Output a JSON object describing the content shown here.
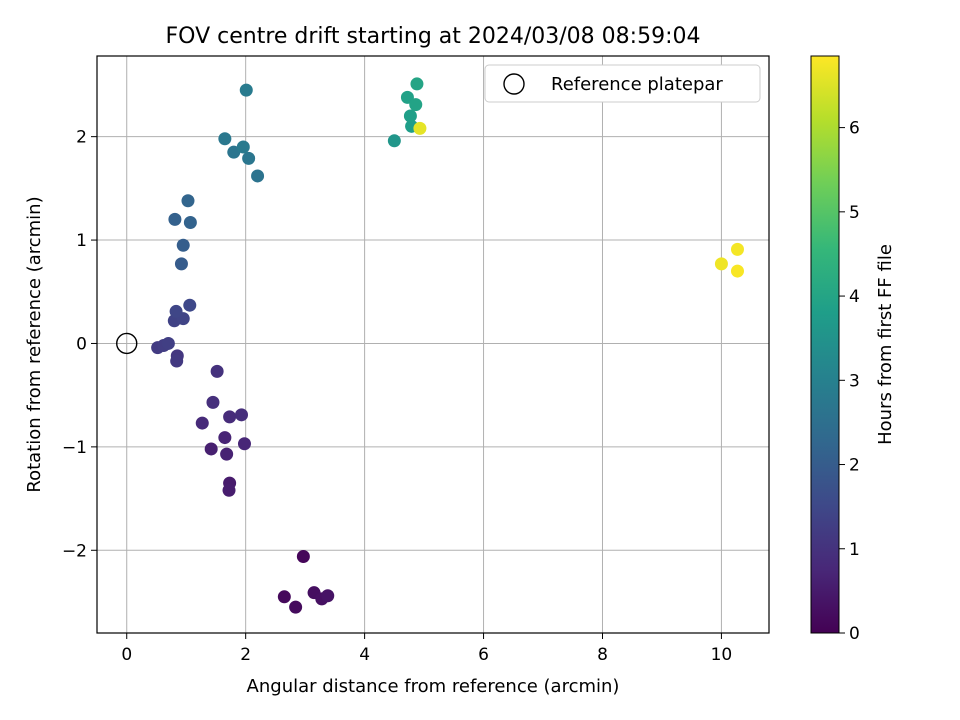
{
  "chart_data": {
    "type": "scatter",
    "title": "FOV centre drift starting at 2024/03/08 08:59:04",
    "xlabel": "Angular distance from reference (arcmin)",
    "ylabel": "Rotation from reference (arcmin)",
    "xlim": [
      -0.5,
      10.8
    ],
    "ylim": [
      -2.8,
      2.78
    ],
    "xticks": [
      0,
      2,
      4,
      6,
      8,
      10
    ],
    "yticks": [
      -2,
      -1,
      0,
      1,
      2
    ],
    "xtick_labels": [
      "0",
      "2",
      "4",
      "6",
      "8",
      "10"
    ],
    "ytick_labels": [
      "−2",
      "−1",
      "0",
      "1",
      "2"
    ],
    "grid": true,
    "legend": {
      "position": "top-right",
      "entries": [
        {
          "label": "Reference platepar",
          "marker": "open-circle"
        }
      ]
    },
    "reference_point": {
      "x": 0,
      "y": 0
    },
    "colorbar": {
      "label": "Hours from first FF file",
      "range": [
        0,
        6.85
      ],
      "ticks": [
        0,
        1,
        2,
        3,
        4,
        5,
        6
      ],
      "tick_labels": [
        "0",
        "1",
        "2",
        "3",
        "4",
        "5",
        "6"
      ],
      "colormap": "viridis",
      "stops": [
        "#440154",
        "#482878",
        "#3e4989",
        "#31688e",
        "#26828e",
        "#1f9e89",
        "#35b779",
        "#6ece58",
        "#b5de2b",
        "#fde725"
      ]
    },
    "points": [
      {
        "x": 2.97,
        "y": -2.06,
        "c": 0.1
      },
      {
        "x": 2.65,
        "y": -2.45,
        "c": 0.15
      },
      {
        "x": 2.84,
        "y": -2.55,
        "c": 0.2
      },
      {
        "x": 3.15,
        "y": -2.41,
        "c": 0.25
      },
      {
        "x": 3.28,
        "y": -2.47,
        "c": 0.3
      },
      {
        "x": 3.38,
        "y": -2.44,
        "c": 0.35
      },
      {
        "x": 1.73,
        "y": -1.35,
        "c": 0.5
      },
      {
        "x": 1.72,
        "y": -1.42,
        "c": 0.55
      },
      {
        "x": 1.42,
        "y": -1.02,
        "c": 0.6
      },
      {
        "x": 1.68,
        "y": -1.07,
        "c": 0.65
      },
      {
        "x": 1.65,
        "y": -0.91,
        "c": 0.7
      },
      {
        "x": 1.98,
        "y": -0.97,
        "c": 0.75
      },
      {
        "x": 1.27,
        "y": -0.77,
        "c": 0.8
      },
      {
        "x": 1.73,
        "y": -0.71,
        "c": 0.85
      },
      {
        "x": 1.93,
        "y": -0.69,
        "c": 0.9
      },
      {
        "x": 1.45,
        "y": -0.57,
        "c": 0.95
      },
      {
        "x": 1.52,
        "y": -0.27,
        "c": 1.0
      },
      {
        "x": 0.85,
        "y": -0.12,
        "c": 1.1
      },
      {
        "x": 0.84,
        "y": -0.17,
        "c": 1.15
      },
      {
        "x": 0.52,
        "y": -0.04,
        "c": 1.2
      },
      {
        "x": 0.62,
        "y": -0.02,
        "c": 1.25
      },
      {
        "x": 0.7,
        "y": 0.0,
        "c": 1.3
      },
      {
        "x": 0.8,
        "y": 0.22,
        "c": 1.35
      },
      {
        "x": 0.95,
        "y": 0.24,
        "c": 1.4
      },
      {
        "x": 0.83,
        "y": 0.31,
        "c": 1.45
      },
      {
        "x": 1.06,
        "y": 0.37,
        "c": 1.5
      },
      {
        "x": 0.92,
        "y": 0.77,
        "c": 2.0
      },
      {
        "x": 0.95,
        "y": 0.95,
        "c": 2.05
      },
      {
        "x": 0.81,
        "y": 1.2,
        "c": 2.1
      },
      {
        "x": 1.07,
        "y": 1.17,
        "c": 2.15
      },
      {
        "x": 1.03,
        "y": 1.38,
        "c": 2.2
      },
      {
        "x": 2.2,
        "y": 1.62,
        "c": 2.6
      },
      {
        "x": 1.8,
        "y": 1.85,
        "c": 2.65
      },
      {
        "x": 2.05,
        "y": 1.79,
        "c": 2.7
      },
      {
        "x": 1.65,
        "y": 1.98,
        "c": 2.75
      },
      {
        "x": 1.96,
        "y": 1.9,
        "c": 2.8
      },
      {
        "x": 2.01,
        "y": 2.45,
        "c": 2.85
      },
      {
        "x": 4.5,
        "y": 1.96,
        "c": 3.6
      },
      {
        "x": 4.79,
        "y": 2.1,
        "c": 3.8
      },
      {
        "x": 4.77,
        "y": 2.2,
        "c": 3.85
      },
      {
        "x": 4.72,
        "y": 2.38,
        "c": 3.9
      },
      {
        "x": 4.86,
        "y": 2.31,
        "c": 3.95
      },
      {
        "x": 4.88,
        "y": 2.51,
        "c": 4.0
      },
      {
        "x": 4.93,
        "y": 2.08,
        "c": 6.6
      },
      {
        "x": 10.0,
        "y": 0.77,
        "c": 6.7
      },
      {
        "x": 10.27,
        "y": 0.91,
        "c": 6.75
      },
      {
        "x": 10.27,
        "y": 0.7,
        "c": 6.8
      }
    ]
  }
}
